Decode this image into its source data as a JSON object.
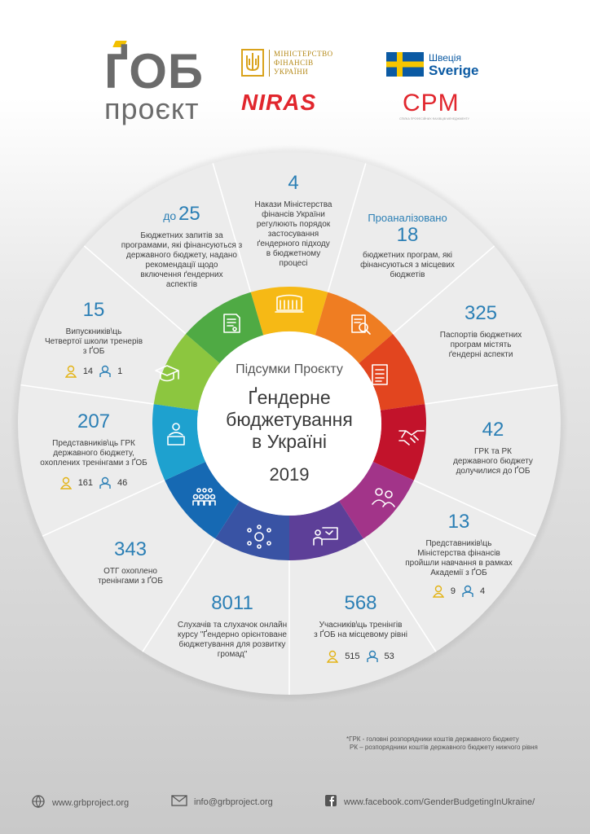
{
  "logos": {
    "gob_main": "ҐОБ",
    "gob_sub": "проєкт",
    "minfin": [
      "МІНІСТЕРСТВО",
      "ФІНАНСІВ",
      "УКРАЇНИ"
    ],
    "niras": "NIRAS",
    "sweden": [
      "Швеція",
      "Sverige"
    ],
    "cpm": "CPM",
    "cpm_sub": "СПІЛКА ПРОФЕСІЙНИХ ФАХІВЦІВ МЕНЕДЖМЕНТУ"
  },
  "center": {
    "subtitle": "Підсумки Проєкту",
    "title_lines": [
      "Ґендерне",
      "бюджетування",
      "в Україні"
    ],
    "year": "2019"
  },
  "segments": {
    "orders": {
      "number": "4",
      "lines": [
        "Накази Міністерства",
        "фінансів України",
        "регулюють порядок",
        "застосування",
        "ґендерного підходу",
        "в бюджетному",
        "процесі"
      ]
    },
    "analyzed": {
      "prefix": "Проаналізовано",
      "number": "18",
      "lines": [
        "бюджетних програм, які",
        "фінансуються з місцевих",
        "бюджетів"
      ]
    },
    "passports": {
      "number": "325",
      "lines": [
        "Паспортів бюджетних",
        "програм містять",
        "ґендерні аспекти"
      ]
    },
    "grk": {
      "number": "42",
      "lines": [
        "ГРК та РК",
        "державного бюджету",
        "долучилися до ҐОБ"
      ]
    },
    "ministry": {
      "number": "13",
      "lines": [
        "Представників\\ць",
        "Міністерства фінансів",
        "пройшли навчання в рамках",
        "Академії з ҐОБ"
      ],
      "female": "9",
      "male": "4"
    },
    "participants": {
      "number": "568",
      "lines": [
        "Учасників\\ць тренінгів",
        "з ҐОБ на місцевому рівні"
      ],
      "female": "515",
      "male": "53"
    },
    "listeners": {
      "number": "8011",
      "lines": [
        "Слухачів та слухачок онлайн",
        "курсу \"Ґендерно орієнтоване",
        "бюджетування для розвитку",
        "громад\""
      ]
    },
    "otg": {
      "number": "343",
      "lines": [
        "ОТГ охоплено",
        "тренінгами з ҐОБ"
      ]
    },
    "reps": {
      "number": "207",
      "lines": [
        "Представників\\ць ГРК",
        "державного бюджету,",
        "охоплених тренінгами з ҐОБ"
      ],
      "female": "161",
      "male": "46"
    },
    "graduates": {
      "number": "15",
      "lines": [
        "Випускників\\ць",
        "Четвертої школи тренерів",
        "з ҐОБ"
      ],
      "female": "14",
      "male": "1"
    },
    "requests": {
      "prefix": "до",
      "number": "25",
      "lines": [
        "Бюджетних запитів за",
        "програмами, які фінансуються з",
        "державного бюджету, надано",
        "рекомендації щодо",
        "включення ґендерних",
        "аспектів"
      ]
    }
  },
  "ring_icons": [
    "parliament-icon",
    "report-search-icon",
    "document-list-icon",
    "handshake-icon",
    "team-icon",
    "presentation-icon",
    "network-icon",
    "audience-icon",
    "speaker-icon",
    "graduation-cap-icon",
    "document-icon"
  ],
  "ring_colors": [
    "#f6b915",
    "#ef7d22",
    "#e2451f",
    "#c2132b",
    "#a23489",
    "#5d3f98",
    "#3953a4",
    "#1669b3",
    "#1ea1cf",
    "#8cc63f",
    "#4faa44"
  ],
  "footnotes": [
    "*ГРК - головні розпорядники коштів державного бюджету",
    "РК – розпорядники коштів державного бюджету нижчого рівня"
  ],
  "contacts": {
    "web": "www.grbproject.org",
    "email": "info@grbproject.org",
    "facebook": "www.facebook.com/GenderBudgetingInUkraine/"
  }
}
